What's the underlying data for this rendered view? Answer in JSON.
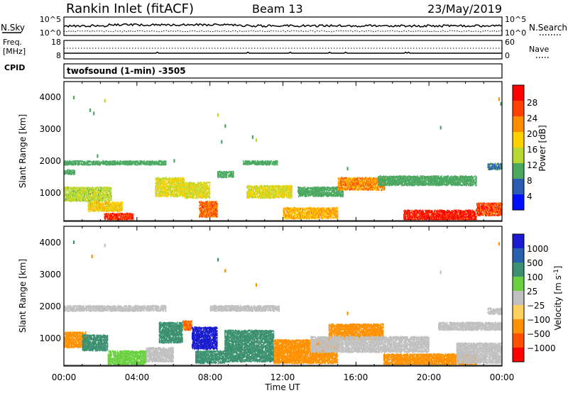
{
  "header": {
    "station": "Rankin Inlet (fitACF)",
    "beam": "Beam 13",
    "date": "23/May/2019"
  },
  "noise_panel": {
    "left_label": "N.Sky",
    "left_ticks": [
      "10^5",
      "10^0"
    ],
    "right_label": "N.Search",
    "right_ticks": [
      "10^5",
      "10^0"
    ]
  },
  "freq_panel": {
    "left_label_line1": "Freq.",
    "left_label_line2": "[MHz]",
    "left_ticks": [
      "18",
      "8"
    ],
    "right_label": "Nave",
    "right_ticks": [
      "60",
      "0"
    ]
  },
  "cpid": {
    "label": "CPID",
    "text": "twofsound (1-min) -3505"
  },
  "power_colorbar": {
    "label": "Power [dB]",
    "ticks": [
      "28",
      "24",
      "20",
      "16",
      "12",
      "8",
      "4"
    ],
    "colors": [
      "#ff0000",
      "#ff4000",
      "#ff8c00",
      "#ffd000",
      "#b8d830",
      "#4aa860",
      "#2a5db0",
      "#0010ff"
    ]
  },
  "velocity_colorbar": {
    "label_main": "Velocity [m s",
    "label_sup": "-1",
    "label_end": "]",
    "ticks": [
      "1000",
      "500",
      "100",
      "25",
      "−25",
      "−100",
      "−500",
      "−1000"
    ],
    "colors": [
      "#1a1ad0",
      "#2860b0",
      "#3a9070",
      "#6ad040",
      "#c0c0c0",
      "#ffd060",
      "#ff9000",
      "#ff5000",
      "#ff0000"
    ]
  },
  "chart_data": [
    {
      "type": "heatmap",
      "panel": "power",
      "ylabel": "Slant Range [km]",
      "yticks": [
        "4000",
        "3000",
        "2000",
        "1000"
      ],
      "ylim": [
        180,
        4600
      ],
      "xlim": [
        0,
        24
      ],
      "value_label": "Power [dB]",
      "regions": [
        {
          "t0": 0.0,
          "t1": 5.6,
          "r0": 1950,
          "r1": 2080,
          "value": 10
        },
        {
          "t0": 0.0,
          "t1": 0.6,
          "r0": 1650,
          "r1": 1800,
          "value": 10
        },
        {
          "t0": 0.0,
          "t1": 2.6,
          "r0": 800,
          "r1": 1250,
          "value": 14
        },
        {
          "t0": 1.3,
          "t1": 3.2,
          "r0": 480,
          "r1": 780,
          "value": 18
        },
        {
          "t0": 2.2,
          "t1": 3.8,
          "r0": 200,
          "r1": 420,
          "value": 28
        },
        {
          "t0": 5.0,
          "t1": 6.6,
          "r0": 950,
          "r1": 1550,
          "value": 16
        },
        {
          "t0": 6.6,
          "t1": 8.0,
          "r0": 900,
          "r1": 1400,
          "value": 16
        },
        {
          "t0": 7.4,
          "t1": 8.4,
          "r0": 300,
          "r1": 800,
          "value": 24
        },
        {
          "t0": 8.4,
          "t1": 9.3,
          "r0": 1550,
          "r1": 1750,
          "value": 10
        },
        {
          "t0": 9.8,
          "t1": 11.7,
          "r0": 1950,
          "r1": 2080,
          "value": 10
        },
        {
          "t0": 10.0,
          "t1": 12.5,
          "r0": 900,
          "r1": 1300,
          "value": 16
        },
        {
          "t0": 12.0,
          "t1": 15.0,
          "r0": 250,
          "r1": 600,
          "value": 20
        },
        {
          "t0": 12.8,
          "t1": 15.3,
          "r0": 950,
          "r1": 1250,
          "value": 10
        },
        {
          "t0": 15.0,
          "t1": 17.6,
          "r0": 1150,
          "r1": 1550,
          "value": 22
        },
        {
          "t0": 17.2,
          "t1": 22.6,
          "r0": 1300,
          "r1": 1600,
          "value": 10
        },
        {
          "t0": 18.6,
          "t1": 22.6,
          "r0": 200,
          "r1": 520,
          "value": 30
        },
        {
          "t0": 22.6,
          "t1": 24.0,
          "r0": 350,
          "r1": 750,
          "value": 26
        },
        {
          "t0": 23.2,
          "t1": 24.0,
          "r0": 1800,
          "r1": 2000,
          "value": 8
        }
      ],
      "scatter_points": [
        {
          "t": 0.5,
          "r": 4150,
          "value": 8
        },
        {
          "t": 1.4,
          "r": 3750,
          "value": 8
        },
        {
          "t": 1.6,
          "r": 3650,
          "value": 8
        },
        {
          "t": 2.2,
          "r": 4050,
          "value": 12
        },
        {
          "t": 1.8,
          "r": 2300,
          "value": 10
        },
        {
          "t": 8.4,
          "r": 3600,
          "value": 12
        },
        {
          "t": 8.8,
          "r": 3250,
          "value": 10
        },
        {
          "t": 8.6,
          "r": 2750,
          "value": 10
        },
        {
          "t": 10.3,
          "r": 2900,
          "value": 10
        },
        {
          "t": 10.5,
          "r": 2800,
          "value": 12
        },
        {
          "t": 20.6,
          "r": 3200,
          "value": 10
        },
        {
          "t": 23.8,
          "r": 4100,
          "value": 20
        },
        {
          "t": 23.9,
          "r": 3950,
          "value": 10
        },
        {
          "t": 6.0,
          "r": 2150,
          "value": 10
        },
        {
          "t": 15.5,
          "r": 1900,
          "value": 10
        }
      ]
    },
    {
      "type": "heatmap",
      "panel": "velocity",
      "ylabel": "Slant Range [km]",
      "yticks": [
        "4000",
        "3000",
        "2000",
        "1000"
      ],
      "ylim": [
        180,
        4600
      ],
      "xlim": [
        0,
        24
      ],
      "xlabel": "Time UT",
      "xticks": [
        "00:00",
        "04:00",
        "08:00",
        "12:00",
        "16:00",
        "20:00",
        "00:00"
      ],
      "value_label": "Velocity [m s-1]",
      "regions": [
        {
          "t0": 0.0,
          "t1": 5.6,
          "r0": 1900,
          "r1": 2080,
          "value": 0
        },
        {
          "t0": 8.0,
          "t1": 11.8,
          "r0": 1900,
          "r1": 2080,
          "value": 0
        },
        {
          "t0": 0.0,
          "t1": 1.2,
          "r0": 750,
          "r1": 1250,
          "value": -400
        },
        {
          "t0": 1.0,
          "t1": 2.4,
          "r0": 650,
          "r1": 1150,
          "value": 150
        },
        {
          "t0": 2.4,
          "t1": 4.5,
          "r0": 200,
          "r1": 650,
          "value": 60
        },
        {
          "t0": 4.5,
          "t1": 6.0,
          "r0": 300,
          "r1": 750,
          "value": 0
        },
        {
          "t0": 5.2,
          "t1": 6.5,
          "r0": 900,
          "r1": 1550,
          "value": 200
        },
        {
          "t0": 6.5,
          "t1": 7.0,
          "r0": 1300,
          "r1": 1600,
          "value": -500
        },
        {
          "t0": 7.0,
          "t1": 8.4,
          "r0": 700,
          "r1": 1400,
          "value": 1200
        },
        {
          "t0": 7.2,
          "t1": 8.8,
          "r0": 250,
          "r1": 650,
          "value": 150
        },
        {
          "t0": 8.8,
          "t1": 11.5,
          "r0": 300,
          "r1": 1300,
          "value": 150
        },
        {
          "t0": 11.5,
          "t1": 15.0,
          "r0": 250,
          "r1": 1000,
          "value": -400
        },
        {
          "t0": 14.5,
          "t1": 17.5,
          "r0": 1000,
          "r1": 1500,
          "value": -400
        },
        {
          "t0": 13.5,
          "t1": 20.0,
          "r0": 600,
          "r1": 1100,
          "value": 0
        },
        {
          "t0": 17.5,
          "t1": 22.6,
          "r0": 200,
          "r1": 550,
          "value": -300
        },
        {
          "t0": 21.5,
          "t1": 24.0,
          "r0": 250,
          "r1": 900,
          "value": 0
        },
        {
          "t0": 20.5,
          "t1": 24.0,
          "r0": 1300,
          "r1": 1550,
          "value": 0
        },
        {
          "t0": 23.2,
          "t1": 24.0,
          "r0": 1800,
          "r1": 2000,
          "value": 0
        }
      ],
      "scatter_points": [
        {
          "t": 0.5,
          "r": 4150,
          "value": 300
        },
        {
          "t": 1.5,
          "r": 3700,
          "value": -200
        },
        {
          "t": 2.2,
          "r": 4050,
          "value": 0
        },
        {
          "t": 8.4,
          "r": 3600,
          "value": 200
        },
        {
          "t": 8.8,
          "r": 3250,
          "value": -200
        },
        {
          "t": 10.5,
          "r": 2800,
          "value": -200
        },
        {
          "t": 20.6,
          "r": 3200,
          "value": 0
        },
        {
          "t": 23.8,
          "r": 4100,
          "value": -300
        },
        {
          "t": 15.5,
          "r": 1900,
          "value": -300
        }
      ]
    }
  ]
}
